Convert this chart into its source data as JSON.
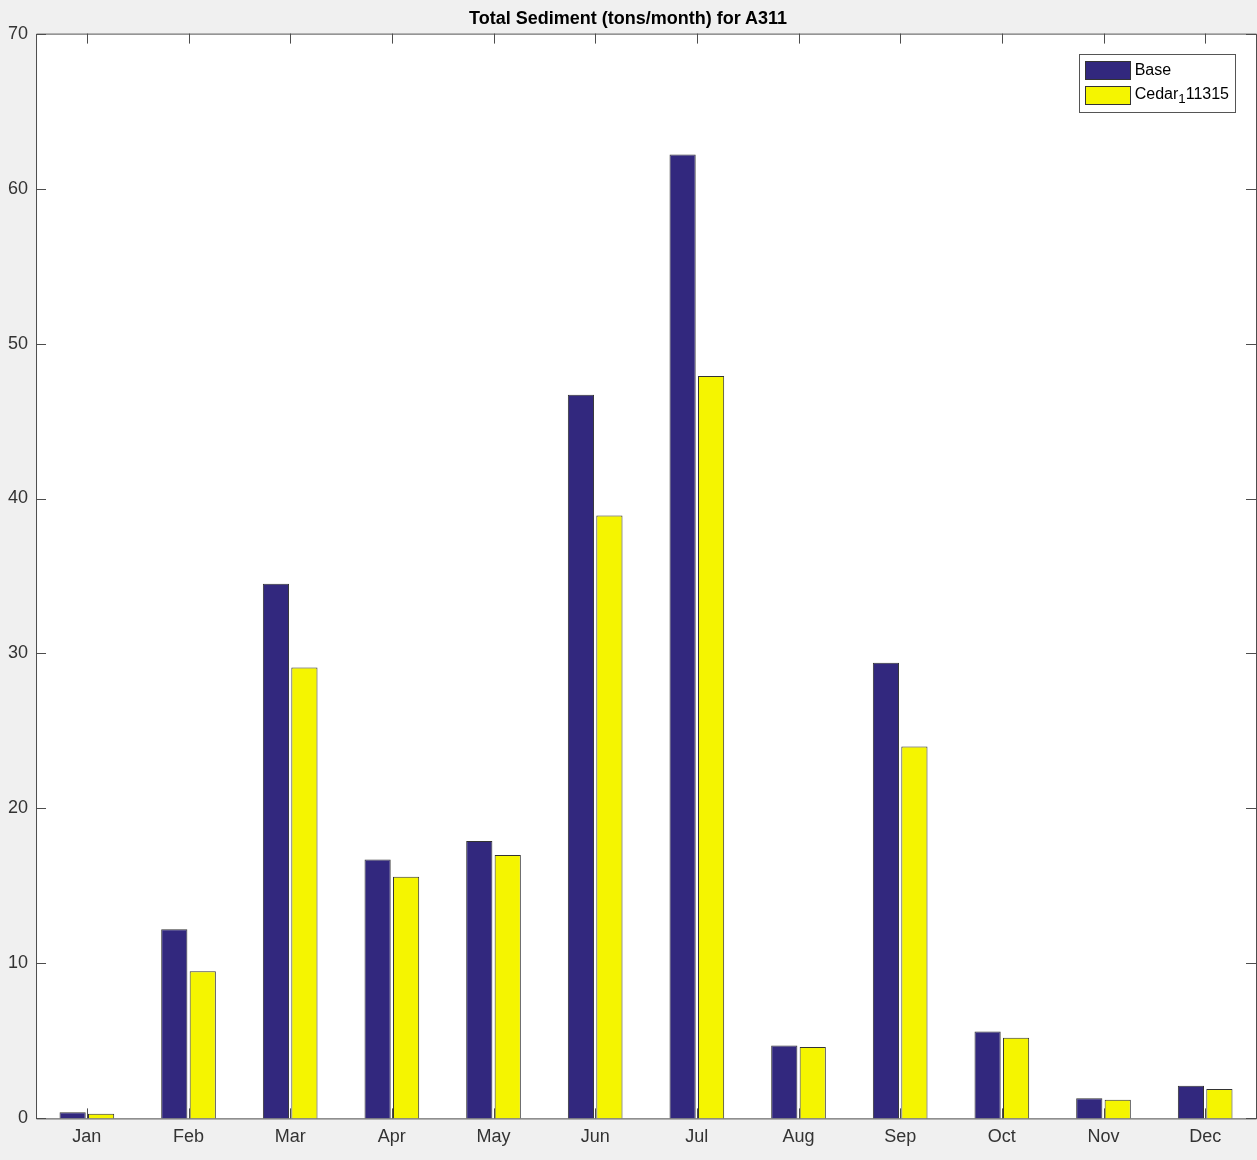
{
  "chart_data": {
    "type": "bar",
    "title": "Total Sediment (tons/month) for A311",
    "categories": [
      "Jan",
      "Feb",
      "Mar",
      "Apr",
      "May",
      "Jun",
      "Jul",
      "Aug",
      "Sep",
      "Oct",
      "Nov",
      "Dec"
    ],
    "series": [
      {
        "name": "Base",
        "color": "#32287e",
        "values": [
          0.4,
          12.2,
          34.5,
          16.7,
          17.9,
          46.7,
          62.2,
          4.7,
          29.4,
          5.6,
          1.3,
          2.1
        ]
      },
      {
        "name": "Cedar$_{1}$11315",
        "color": "#f5f500",
        "values": [
          0.3,
          9.5,
          29.1,
          15.6,
          17.0,
          38.9,
          47.9,
          4.6,
          24.0,
          5.2,
          1.2,
          1.9
        ]
      }
    ],
    "ylim": [
      0,
      70
    ],
    "yticks": [
      0,
      10,
      20,
      30,
      40,
      50,
      60,
      70
    ],
    "grid": false,
    "legend": "top right"
  }
}
